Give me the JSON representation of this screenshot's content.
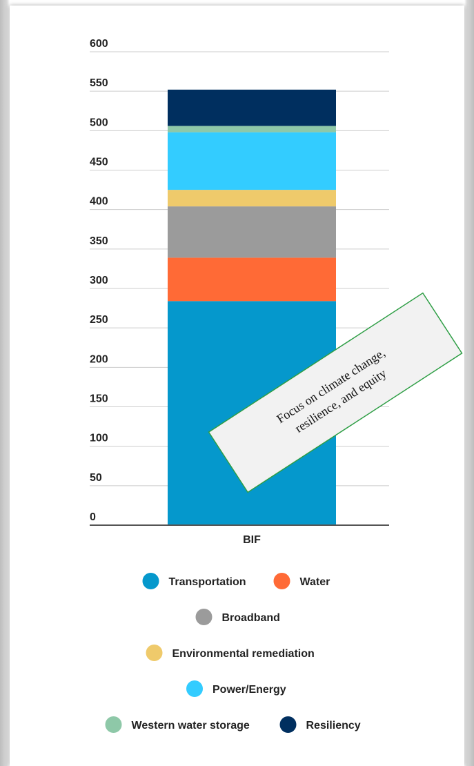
{
  "chart_data": {
    "type": "bar",
    "stacked": true,
    "categories": [
      "BIF"
    ],
    "series": [
      {
        "name": "Transportation",
        "values": [
          284
        ],
        "color": "#0598CC"
      },
      {
        "name": "Water",
        "values": [
          55
        ],
        "color": "#FF6A36"
      },
      {
        "name": "Broadband",
        "values": [
          65
        ],
        "color": "#9B9B9B"
      },
      {
        "name": "Environmental remediation",
        "values": [
          21
        ],
        "color": "#EFCA6B"
      },
      {
        "name": "Power/Energy",
        "values": [
          73
        ],
        "color": "#33CCFF"
      },
      {
        "name": "Western water storage",
        "values": [
          8
        ],
        "color": "#8EC8A8"
      },
      {
        "name": "Resiliency",
        "values": [
          46
        ],
        "color": "#002F5F"
      }
    ],
    "ylim": [
      0,
      600
    ],
    "yticks": [
      0,
      50,
      100,
      150,
      200,
      250,
      300,
      350,
      400,
      450,
      500,
      550,
      600
    ],
    "grid": true,
    "legend_position": "bottom",
    "annotation": {
      "text_line1": "Focus on climate change,",
      "text_line2": "resilience, and equity",
      "border_color": "#2E9E45"
    }
  }
}
